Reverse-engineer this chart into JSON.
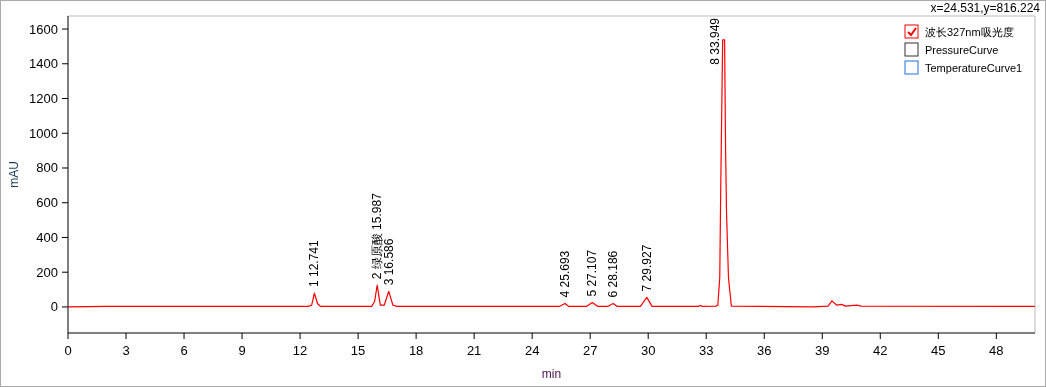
{
  "chart_data": {
    "type": "line",
    "xlabel": "min",
    "ylabel": "mAU",
    "xlim": [
      0,
      50
    ],
    "ylim": [
      -150,
      1675
    ],
    "xticks": [
      0,
      3,
      6,
      9,
      12,
      15,
      18,
      21,
      24,
      27,
      30,
      33,
      36,
      39,
      42,
      45,
      48
    ],
    "yticks": [
      0,
      200,
      400,
      600,
      800,
      1000,
      1200,
      1400,
      1600
    ],
    "legend": "top right",
    "grid": false,
    "marker": "none",
    "line_style": "solid",
    "series": [
      {
        "name": "波长327nm吸光度",
        "color": "#ff0000",
        "x": [
          0,
          2,
          12.4,
          12.6,
          12.741,
          12.9,
          13.05,
          15.7,
          15.85,
          15.987,
          16.15,
          16.35,
          16.586,
          16.8,
          17,
          25.4,
          25.693,
          25.9,
          26.8,
          27.107,
          27.4,
          27.9,
          28.186,
          28.4,
          29.6,
          29.927,
          30.2,
          32.6,
          32.7,
          32.8,
          33.5,
          33.6,
          33.7,
          33.75,
          33.85,
          33.95,
          34.0,
          34.05,
          34.15,
          34.3,
          38.5,
          39.3,
          39.5,
          39.75,
          40,
          40.2,
          40.8,
          41,
          50
        ],
        "values": [
          0,
          3,
          3,
          10,
          80,
          20,
          3,
          3,
          30,
          125,
          10,
          10,
          90,
          10,
          3,
          3,
          20,
          3,
          3,
          25,
          3,
          3,
          20,
          3,
          3,
          55,
          3,
          3,
          8,
          3,
          5,
          10,
          170,
          680,
          1537,
          1537,
          920,
          540,
          170,
          5,
          0,
          5,
          35,
          10,
          15,
          5,
          10,
          5,
          3
        ]
      },
      {
        "name": "PressureCurve",
        "color": "#333333"
      },
      {
        "name": "TemperatureCurve1",
        "color": "#1f6fe0"
      }
    ],
    "annotations": [
      "x=24.531,y=816.224",
      {
        "text": "1  12.741",
        "x": 12.741,
        "y": 80
      },
      {
        "text": "2  绿原酸  15.987",
        "x": 15.987,
        "y": 125
      },
      {
        "text": "3  16.586",
        "x": 16.586,
        "y": 90
      },
      {
        "text": "4  25.693",
        "x": 25.693,
        "y": 20
      },
      {
        "text": "5  27.107",
        "x": 27.107,
        "y": 25
      },
      {
        "text": "6  28.186",
        "x": 28.186,
        "y": 20
      },
      {
        "text": "7  29.927",
        "x": 29.927,
        "y": 55
      },
      {
        "text": "8  33.949",
        "x": 33.949,
        "y": 1537
      }
    ]
  }
}
